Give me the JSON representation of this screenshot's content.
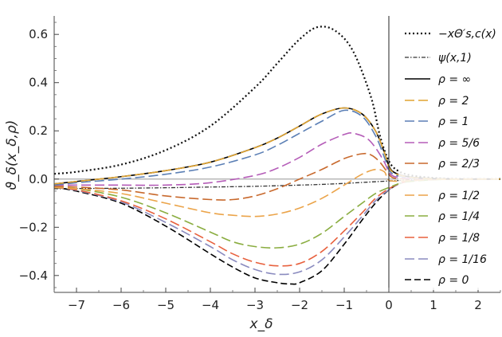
{
  "chart_data": {
    "type": "line",
    "xlabel": "x_δ",
    "ylabel": "ϑ_δ(x_δ,ρ)",
    "xlim": [
      -7.5,
      2.5
    ],
    "ylim": [
      -0.47,
      0.67
    ],
    "x_ticks": [
      "-7",
      "-6",
      "-5",
      "-4",
      "-3",
      "-2",
      "-1",
      "0",
      "1",
      "2"
    ],
    "y_ticks": [
      "-0.4",
      "-0.2",
      "0.0",
      "0.2",
      "0.4",
      "0.6"
    ],
    "legend_position": "right",
    "grid": false,
    "series": [
      {
        "name": "−xΘ′s,c(x)",
        "color": "#111111",
        "dash": "2,3",
        "width": 2.2,
        "x": [
          -7.5,
          -7,
          -6,
          -5,
          -4,
          -3,
          -2.5,
          -2,
          -1.6,
          -1.2,
          -0.8,
          -0.4,
          -0.2,
          0,
          0.2,
          0.5,
          1,
          1.5,
          2.5
        ],
        "y": [
          0.022,
          0.03,
          0.06,
          0.12,
          0.22,
          0.38,
          0.48,
          0.58,
          0.63,
          0.615,
          0.53,
          0.34,
          0.18,
          0.075,
          0.035,
          0.015,
          0.005,
          0.001,
          0.0
        ]
      },
      {
        "name": "ψ(x,1)",
        "color": "#333333",
        "dash": "5,2,1.5,2",
        "width": 1.3,
        "x": [
          -7.5,
          -6,
          -5,
          -4,
          -3,
          -2,
          -1.5,
          -1,
          -0.5,
          0,
          0.5,
          1,
          1.5,
          2.5
        ],
        "y": [
          -0.04,
          -0.038,
          -0.036,
          -0.033,
          -0.03,
          -0.025,
          -0.022,
          -0.018,
          -0.013,
          -0.008,
          -0.004,
          -0.002,
          -0.001,
          0.0
        ]
      },
      {
        "name": "ρ = ∞",
        "color": "#000000",
        "dash": "",
        "width": 1.6,
        "x": [
          -7.5,
          -7,
          -6,
          -5,
          -4,
          -3,
          -2.5,
          -2,
          -1.5,
          -1,
          -0.6,
          -0.3,
          -0.1,
          0,
          0.1,
          0.3,
          0.6,
          1,
          1.5,
          2.5
        ],
        "y": [
          -0.02,
          -0.01,
          0.01,
          0.035,
          0.07,
          0.13,
          0.17,
          0.22,
          0.27,
          0.295,
          0.27,
          0.2,
          0.11,
          0.055,
          0.03,
          0.015,
          0.006,
          0.002,
          0.0,
          0.0
        ]
      },
      {
        "name": "ρ = 2",
        "color": "#e0a431",
        "dash": "12,5",
        "width": 1.6,
        "x": [
          -7.5,
          -7,
          -6,
          -5,
          -4,
          -3,
          -2.5,
          -2,
          -1.5,
          -1,
          -0.6,
          -0.3,
          -0.1,
          0,
          0.1,
          0.3,
          0.6,
          1,
          1.5,
          2.5
        ],
        "y": [
          -0.02,
          -0.01,
          0.01,
          0.035,
          0.07,
          0.13,
          0.17,
          0.22,
          0.27,
          0.295,
          0.27,
          0.2,
          0.11,
          0.05,
          0.028,
          0.013,
          0.005,
          0.001,
          0.0,
          0.0
        ]
      },
      {
        "name": "ρ = 1",
        "color": "#5b7fb5",
        "dash": "12,5",
        "width": 1.6,
        "x": [
          -7.5,
          -7,
          -6,
          -5,
          -4,
          -3,
          -2.5,
          -2,
          -1.5,
          -1,
          -0.6,
          -0.3,
          -0.1,
          0,
          0.1,
          0.3,
          0.6,
          1,
          1.5,
          2.5
        ],
        "y": [
          -0.025,
          -0.015,
          0.0,
          0.02,
          0.05,
          0.1,
          0.14,
          0.19,
          0.24,
          0.285,
          0.26,
          0.18,
          0.09,
          0.04,
          0.02,
          0.01,
          0.004,
          0.001,
          0.0,
          0.0
        ]
      },
      {
        "name": "ρ = 5/6",
        "color": "#b55db8",
        "dash": "12,5",
        "width": 1.6,
        "x": [
          -7.5,
          -7,
          -6,
          -5,
          -4,
          -3,
          -2.5,
          -2,
          -1.5,
          -1,
          -0.8,
          -0.5,
          -0.3,
          -0.1,
          0,
          0.1,
          0.3,
          0.6,
          1,
          1.5,
          2.5
        ],
        "y": [
          -0.025,
          -0.025,
          -0.025,
          -0.025,
          -0.015,
          0.015,
          0.045,
          0.09,
          0.145,
          0.185,
          0.19,
          0.17,
          0.13,
          0.07,
          0.03,
          0.012,
          0.005,
          0.002,
          0.001,
          0.0,
          0.0
        ]
      },
      {
        "name": "ρ = 2/3",
        "color": "#c8692d",
        "dash": "12,5",
        "width": 1.6,
        "x": [
          -7.5,
          -7,
          -6,
          -5,
          -4,
          -3.5,
          -3,
          -2.5,
          -2,
          -1.5,
          -1,
          -0.6,
          -0.4,
          -0.2,
          0,
          0.1,
          0.3,
          0.6,
          1,
          1.5,
          2.5
        ],
        "y": [
          -0.03,
          -0.033,
          -0.045,
          -0.07,
          -0.085,
          -0.085,
          -0.07,
          -0.04,
          0.0,
          0.04,
          0.085,
          0.105,
          0.1,
          0.07,
          0.02,
          0.005,
          0.001,
          0.0,
          0.0,
          0.0,
          0.0
        ]
      },
      {
        "name": "ρ = 1/2",
        "color": "#eba44a",
        "dash": "12,5",
        "width": 1.6,
        "x": [
          -7.5,
          -7,
          -6,
          -5,
          -4,
          -3.5,
          -3,
          -2.5,
          -2,
          -1.5,
          -1,
          -0.6,
          -0.3,
          -0.1,
          0,
          0.3,
          0.6,
          1,
          1.5,
          2.5
        ],
        "y": [
          -0.035,
          -0.04,
          -0.06,
          -0.1,
          -0.14,
          -0.15,
          -0.155,
          -0.145,
          -0.12,
          -0.08,
          -0.025,
          0.02,
          0.04,
          0.03,
          -0.005,
          -0.008,
          -0.005,
          -0.002,
          -0.001,
          0.0
        ]
      },
      {
        "name": "ρ = 1/4",
        "color": "#8aad40",
        "dash": "12,5",
        "width": 1.6,
        "x": [
          -7.5,
          -7,
          -6,
          -5,
          -4,
          -3.5,
          -3,
          -2.5,
          -2,
          -1.5,
          -1,
          -0.6,
          -0.3,
          0,
          0.3,
          0.6,
          1,
          1.5,
          2.5
        ],
        "y": [
          -0.035,
          -0.04,
          -0.075,
          -0.14,
          -0.22,
          -0.26,
          -0.28,
          -0.285,
          -0.27,
          -0.225,
          -0.155,
          -0.1,
          -0.06,
          -0.035,
          -0.015,
          -0.008,
          -0.003,
          -0.001,
          0.0
        ]
      },
      {
        "name": "ρ = 1/8",
        "color": "#e8613e",
        "dash": "12,5",
        "width": 1.6,
        "x": [
          -7.5,
          -7,
          -6,
          -5,
          -4,
          -3.5,
          -3,
          -2.5,
          -2,
          -1.5,
          -1,
          -0.6,
          -0.3,
          0,
          0.3,
          0.6,
          1,
          1.5,
          2.5
        ],
        "y": [
          -0.035,
          -0.045,
          -0.09,
          -0.165,
          -0.26,
          -0.31,
          -0.345,
          -0.36,
          -0.35,
          -0.3,
          -0.215,
          -0.14,
          -0.08,
          -0.04,
          -0.015,
          -0.006,
          -0.002,
          0.0,
          0.0
        ]
      },
      {
        "name": "ρ = 1/16",
        "color": "#8a8bbf",
        "dash": "12,5",
        "width": 1.6,
        "x": [
          -7.5,
          -7,
          -6,
          -5,
          -4,
          -3.5,
          -3,
          -2.5,
          -2,
          -1.5,
          -1,
          -0.6,
          -0.3,
          0,
          0.3,
          0.6,
          1,
          1.5,
          2.5
        ],
        "y": [
          -0.035,
          -0.047,
          -0.095,
          -0.18,
          -0.28,
          -0.335,
          -0.375,
          -0.395,
          -0.385,
          -0.335,
          -0.24,
          -0.155,
          -0.09,
          -0.045,
          -0.015,
          -0.006,
          -0.002,
          0.0,
          0.0
        ]
      },
      {
        "name": "ρ = 0",
        "color": "#000000",
        "dash": "8,4",
        "width": 1.6,
        "x": [
          -7.5,
          -7,
          -6,
          -5,
          -4,
          -3.5,
          -3,
          -2.5,
          -2.2,
          -2,
          -1.5,
          -1,
          -0.6,
          -0.3,
          0,
          0.3,
          0.6,
          1,
          1.5,
          2.5
        ],
        "y": [
          -0.035,
          -0.05,
          -0.1,
          -0.195,
          -0.31,
          -0.365,
          -0.41,
          -0.43,
          -0.435,
          -0.43,
          -0.38,
          -0.27,
          -0.17,
          -0.1,
          -0.045,
          -0.015,
          -0.006,
          -0.002,
          0.0,
          0.0
        ]
      }
    ]
  }
}
